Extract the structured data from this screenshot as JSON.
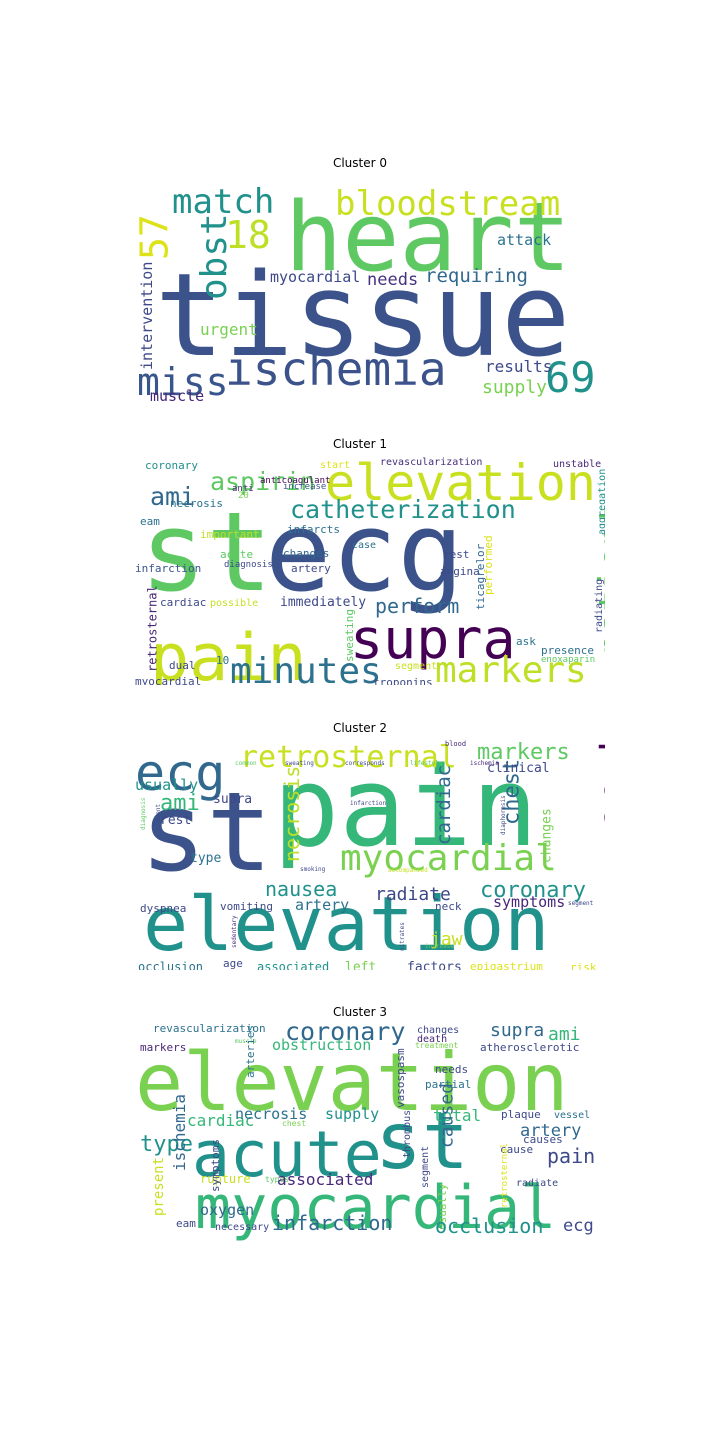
{
  "chart_data": [
    {
      "type": "wordcloud",
      "title": "Cluster 0",
      "words": [
        {
          "text": "tissue",
          "color": "#3b528b"
        },
        {
          "text": "heart",
          "color": "#5ec962"
        },
        {
          "text": "ischemia",
          "color": "#3b528b"
        },
        {
          "text": "bloodstream",
          "color": "#c8e020"
        },
        {
          "text": "match",
          "color": "#21918c"
        },
        {
          "text": "57",
          "color": "#dde318"
        },
        {
          "text": "18",
          "color": "#bddf26"
        },
        {
          "text": "obst",
          "color": "#21918c"
        },
        {
          "text": "69",
          "color": "#21918c"
        },
        {
          "text": "miss",
          "color": "#39568c"
        },
        {
          "text": "attack",
          "color": "#2c728e"
        },
        {
          "text": "requiring",
          "color": "#31688e"
        },
        {
          "text": "needs",
          "color": "#46327e"
        },
        {
          "text": "myocardial",
          "color": "#3e4989"
        },
        {
          "text": "intervention",
          "color": "#3e4989"
        },
        {
          "text": "urgent",
          "color": "#7ad151"
        },
        {
          "text": "results",
          "color": "#3e4989"
        },
        {
          "text": "supply",
          "color": "#7ad151"
        },
        {
          "text": "muscle",
          "color": "#482677"
        }
      ]
    },
    {
      "type": "wordcloud",
      "title": "Cluster 1",
      "words": [
        {
          "text": "st",
          "color": "#5ec962"
        },
        {
          "text": "ecg",
          "color": "#3b528b"
        },
        {
          "text": "pain",
          "color": "#c8e020"
        },
        {
          "text": "supra",
          "color": "#440154"
        },
        {
          "text": "elevation",
          "color": "#c8e020"
        },
        {
          "text": "catheterization",
          "color": "#21918c"
        },
        {
          "text": "patient",
          "color": "#5ec962"
        },
        {
          "text": "markers",
          "color": "#bddf26"
        },
        {
          "text": "minutes",
          "color": "#2c728e"
        },
        {
          "text": "aspirin",
          "color": "#5ec962"
        },
        {
          "text": "ami",
          "color": "#31688e"
        },
        {
          "text": "perform",
          "color": "#31688e"
        },
        {
          "text": "coronary",
          "color": "#21918c"
        },
        {
          "text": "start",
          "color": "#dde318"
        },
        {
          "text": "revascularization",
          "color": "#472d7b"
        },
        {
          "text": "unstable",
          "color": "#482878"
        },
        {
          "text": "anticoagulant",
          "color": "#440154"
        },
        {
          "text": "anti",
          "color": "#482878"
        },
        {
          "text": "increase",
          "color": "#3b528b"
        },
        {
          "text": "20",
          "color": "#7ad151"
        },
        {
          "text": "necrosis",
          "color": "#2c728e"
        },
        {
          "text": "eam",
          "color": "#2c728e"
        },
        {
          "text": "infarcts",
          "color": "#2c728e"
        },
        {
          "text": "aggregation",
          "color": "#21918c"
        },
        {
          "text": "important",
          "color": "#bddf26"
        },
        {
          "text": "changes",
          "color": "#31688e"
        },
        {
          "text": "case",
          "color": "#2c728e"
        },
        {
          "text": "rest",
          "color": "#3e4989"
        },
        {
          "text": "performed",
          "color": "#dde318"
        },
        {
          "text": "acute",
          "color": "#5ec962"
        },
        {
          "text": "diagnosis",
          "color": "#3e4989"
        },
        {
          "text": "artery",
          "color": "#3e4989"
        },
        {
          "text": "angina",
          "color": "#3e4989"
        },
        {
          "text": "infarction",
          "color": "#39568c"
        },
        {
          "text": "ticagrelor",
          "color": "#31688e"
        },
        {
          "text": "radiating",
          "color": "#3e4989"
        },
        {
          "text": "cardiac",
          "color": "#3e4989"
        },
        {
          "text": "possible",
          "color": "#c8e020"
        },
        {
          "text": "immediately",
          "color": "#3e4989"
        },
        {
          "text": "retrosternal",
          "color": "#482878"
        },
        {
          "text": "sweating",
          "color": "#5ec962"
        },
        {
          "text": "ask",
          "color": "#2c728e"
        },
        {
          "text": "presence",
          "color": "#2c728e"
        },
        {
          "text": "enoxaparin",
          "color": "#5ec962"
        },
        {
          "text": "dual",
          "color": "#3e4989"
        },
        {
          "text": "10",
          "color": "#2c728e"
        },
        {
          "text": "segment",
          "color": "#c8e020"
        },
        {
          "text": "myocardial",
          "color": "#3e4989"
        },
        {
          "text": "troponins",
          "color": "#3e4989"
        }
      ]
    },
    {
      "type": "wordcloud",
      "title": "Cluster 2",
      "words": [
        {
          "text": "pain",
          "color": "#35b779"
        },
        {
          "text": "st",
          "color": "#3b528b"
        },
        {
          "text": "elevation",
          "color": "#21918c"
        },
        {
          "text": "ecg",
          "color": "#31688e"
        },
        {
          "text": "retrosternal",
          "color": "#c8e020"
        },
        {
          "text": "acute",
          "color": "#440154"
        },
        {
          "text": "myocardial",
          "color": "#7ad151"
        },
        {
          "text": "markers",
          "color": "#5ec962"
        },
        {
          "text": "ami",
          "color": "#35b779"
        },
        {
          "text": "necrosis",
          "color": "#bddf26"
        },
        {
          "text": "chest",
          "color": "#31688e"
        },
        {
          "text": "cardiac",
          "color": "#31688e"
        },
        {
          "text": "coronary",
          "color": "#21918c"
        },
        {
          "text": "nausea",
          "color": "#21918c"
        },
        {
          "text": "radiate",
          "color": "#3e4989"
        },
        {
          "text": "usually",
          "color": "#21918c"
        },
        {
          "text": "rest",
          "color": "#3e4989"
        },
        {
          "text": "supra",
          "color": "#3e4989"
        },
        {
          "text": "clinical",
          "color": "#3e4989"
        },
        {
          "text": "changes",
          "color": "#7ad151"
        },
        {
          "text": "type",
          "color": "#2c728e"
        },
        {
          "text": "symptoms",
          "color": "#482878"
        },
        {
          "text": "artery",
          "color": "#2c728e"
        },
        {
          "text": "vomiting",
          "color": "#3e4989"
        },
        {
          "text": "dyspnea",
          "color": "#3e4989"
        },
        {
          "text": "jaw",
          "color": "#c8e020"
        },
        {
          "text": "neck",
          "color": "#3e4989"
        },
        {
          "text": "blood",
          "color": "#482878"
        },
        {
          "text": "common",
          "color": "#5ec962"
        },
        {
          "text": "sweating",
          "color": "#3e4989"
        },
        {
          "text": "corresponds",
          "color": "#3e4989"
        },
        {
          "text": "lifestyle",
          "color": "#5ec962"
        },
        {
          "text": "ischemia",
          "color": "#482878"
        },
        {
          "text": "diaphoresis",
          "color": "#3e4989"
        },
        {
          "text": "infarction",
          "color": "#3e4989"
        },
        {
          "text": "diagnosis",
          "color": "#5ec962"
        },
        {
          "text": "event",
          "color": "#3e4989"
        },
        {
          "text": "smoking",
          "color": "#3e4989"
        },
        {
          "text": "accompanied",
          "color": "#c8e020"
        },
        {
          "text": "segment",
          "color": "#3e4989"
        },
        {
          "text": "sedentary",
          "color": "#482878"
        },
        {
          "text": "nitrates",
          "color": "#3e4989"
        },
        {
          "text": "increase",
          "color": "#5ec962"
        },
        {
          "text": "occlusion",
          "color": "#2c728e"
        },
        {
          "text": "age",
          "color": "#3e4989"
        },
        {
          "text": "associated",
          "color": "#21918c"
        },
        {
          "text": "left",
          "color": "#7ad151"
        },
        {
          "text": "factors",
          "color": "#3e4989"
        },
        {
          "text": "epigastrium",
          "color": "#dde318"
        },
        {
          "text": "risk",
          "color": "#dde318"
        }
      ]
    },
    {
      "type": "wordcloud",
      "title": "Cluster 3",
      "words": [
        {
          "text": "elevation",
          "color": "#7ad151"
        },
        {
          "text": "acute",
          "color": "#21918c"
        },
        {
          "text": "st",
          "color": "#21918c"
        },
        {
          "text": "myocardial",
          "color": "#35b779"
        },
        {
          "text": "coronary",
          "color": "#31688e"
        },
        {
          "text": "revascularization",
          "color": "#2c728e"
        },
        {
          "text": "supra",
          "color": "#31688e"
        },
        {
          "text": "ami",
          "color": "#35b779"
        },
        {
          "text": "changes",
          "color": "#3e4989"
        },
        {
          "text": "death",
          "color": "#482878"
        },
        {
          "text": "treatment",
          "color": "#7ad151"
        },
        {
          "text": "muscle",
          "color": "#5ec962"
        },
        {
          "text": "obstruction",
          "color": "#35b779"
        },
        {
          "text": "markers",
          "color": "#482878"
        },
        {
          "text": "arteries",
          "color": "#2c728e"
        },
        {
          "text": "atherosclerotic",
          "color": "#3e4989"
        },
        {
          "text": "needs",
          "color": "#3e4989"
        },
        {
          "text": "partial",
          "color": "#2c728e"
        },
        {
          "text": "cardiac",
          "color": "#35b779"
        },
        {
          "text": "necrosis",
          "color": "#2c728e"
        },
        {
          "text": "supply",
          "color": "#21918c"
        },
        {
          "text": "total",
          "color": "#35b779"
        },
        {
          "text": "vasospasm",
          "color": "#3e4989"
        },
        {
          "text": "plaque",
          "color": "#3e4989"
        },
        {
          "text": "vessel",
          "color": "#2c728e"
        },
        {
          "text": "type",
          "color": "#21918c"
        },
        {
          "text": "chest",
          "color": "#7ad151"
        },
        {
          "text": "caused",
          "color": "#31688e"
        },
        {
          "text": "artery",
          "color": "#31688e"
        },
        {
          "text": "causes",
          "color": "#3e4989"
        },
        {
          "text": "pain",
          "color": "#3e4989"
        },
        {
          "text": "ischemia",
          "color": "#31688e"
        },
        {
          "text": "thrombus",
          "color": "#3e4989"
        },
        {
          "text": "cause",
          "color": "#3e4989"
        },
        {
          "text": "rupture",
          "color": "#c8e020"
        },
        {
          "text": "types",
          "color": "#5ec962"
        },
        {
          "text": "associated",
          "color": "#482878"
        },
        {
          "text": "segment",
          "color": "#3e4989"
        },
        {
          "text": "radiate",
          "color": "#3e4989"
        },
        {
          "text": "retrosternal",
          "color": "#dde318"
        },
        {
          "text": "pathology",
          "color": "#dde318"
        },
        {
          "text": "present",
          "color": "#c8e020"
        },
        {
          "text": "symptoms",
          "color": "#3e4989"
        },
        {
          "text": "oxygen",
          "color": "#31688e"
        },
        {
          "text": "eam",
          "color": "#3e4989"
        },
        {
          "text": "necessary",
          "color": "#3e4989"
        },
        {
          "text": "infarction",
          "color": "#31688e"
        },
        {
          "text": "usually",
          "color": "#7ad151"
        },
        {
          "text": "occlusion",
          "color": "#21918c"
        },
        {
          "text": "ecg",
          "color": "#3e4989"
        }
      ]
    }
  ]
}
